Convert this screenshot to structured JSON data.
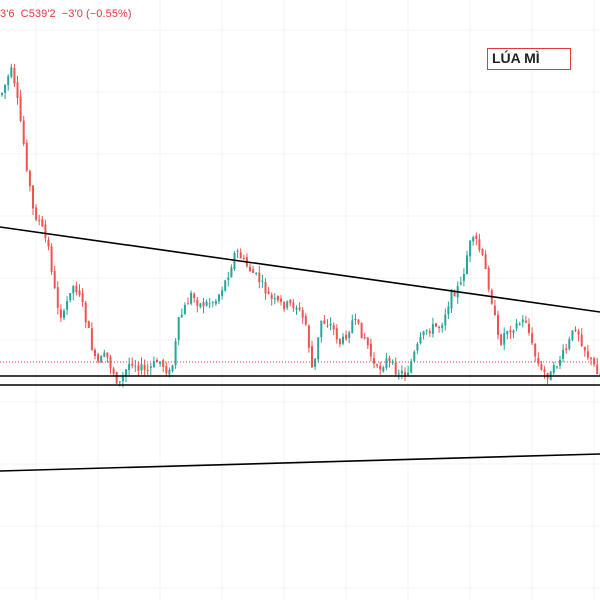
{
  "header": {
    "open_fragment": "3'6",
    "close_label": "C",
    "close_value": "539'2",
    "change": "−3'0",
    "change_pct": "(−0.55%)"
  },
  "title": "LÚA MÌ",
  "colors": {
    "up": "#26a69a",
    "down": "#ef5350",
    "trendline": "#000000",
    "price_line": "#e0393e",
    "grid": "#f0f3fa"
  },
  "chart_data": {
    "type": "candlestick",
    "title": "LÚA MÌ",
    "grid": true,
    "legend": "none",
    "annotations": [
      "descending trendline",
      "horizontal support band",
      "lower ascending trendline"
    ]
  }
}
